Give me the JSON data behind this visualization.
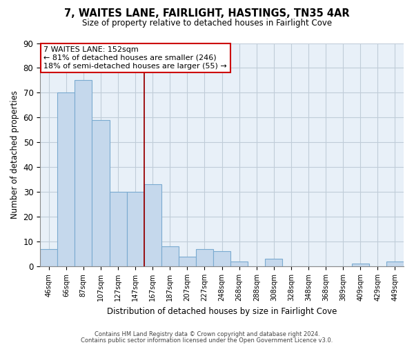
{
  "title": "7, WAITES LANE, FAIRLIGHT, HASTINGS, TN35 4AR",
  "subtitle": "Size of property relative to detached houses in Fairlight Cove",
  "xlabel": "Distribution of detached houses by size in Fairlight Cove",
  "ylabel": "Number of detached properties",
  "bar_labels": [
    "46sqm",
    "66sqm",
    "87sqm",
    "107sqm",
    "127sqm",
    "147sqm",
    "167sqm",
    "187sqm",
    "207sqm",
    "227sqm",
    "248sqm",
    "268sqm",
    "288sqm",
    "308sqm",
    "328sqm",
    "348sqm",
    "368sqm",
    "389sqm",
    "409sqm",
    "429sqm",
    "449sqm"
  ],
  "bar_values": [
    7,
    70,
    75,
    59,
    30,
    30,
    33,
    8,
    4,
    7,
    6,
    2,
    0,
    3,
    0,
    0,
    0,
    0,
    1,
    0,
    2
  ],
  "bar_color": "#c5d8ec",
  "bar_edge_color": "#7aaad0",
  "vline_x": 5.5,
  "vline_color": "#990000",
  "ylim": [
    0,
    90
  ],
  "yticks": [
    0,
    10,
    20,
    30,
    40,
    50,
    60,
    70,
    80,
    90
  ],
  "annotation_line1": "7 WAITES LANE: 152sqm",
  "annotation_line2": "← 81% of detached houses are smaller (246)",
  "annotation_line3": "18% of semi-detached houses are larger (55) →",
  "footer1": "Contains HM Land Registry data © Crown copyright and database right 2024.",
  "footer2": "Contains public sector information licensed under the Open Government Licence v3.0.",
  "background_color": "#ffffff",
  "plot_bg_color": "#e8f0f8",
  "grid_color": "#c0ccd8"
}
